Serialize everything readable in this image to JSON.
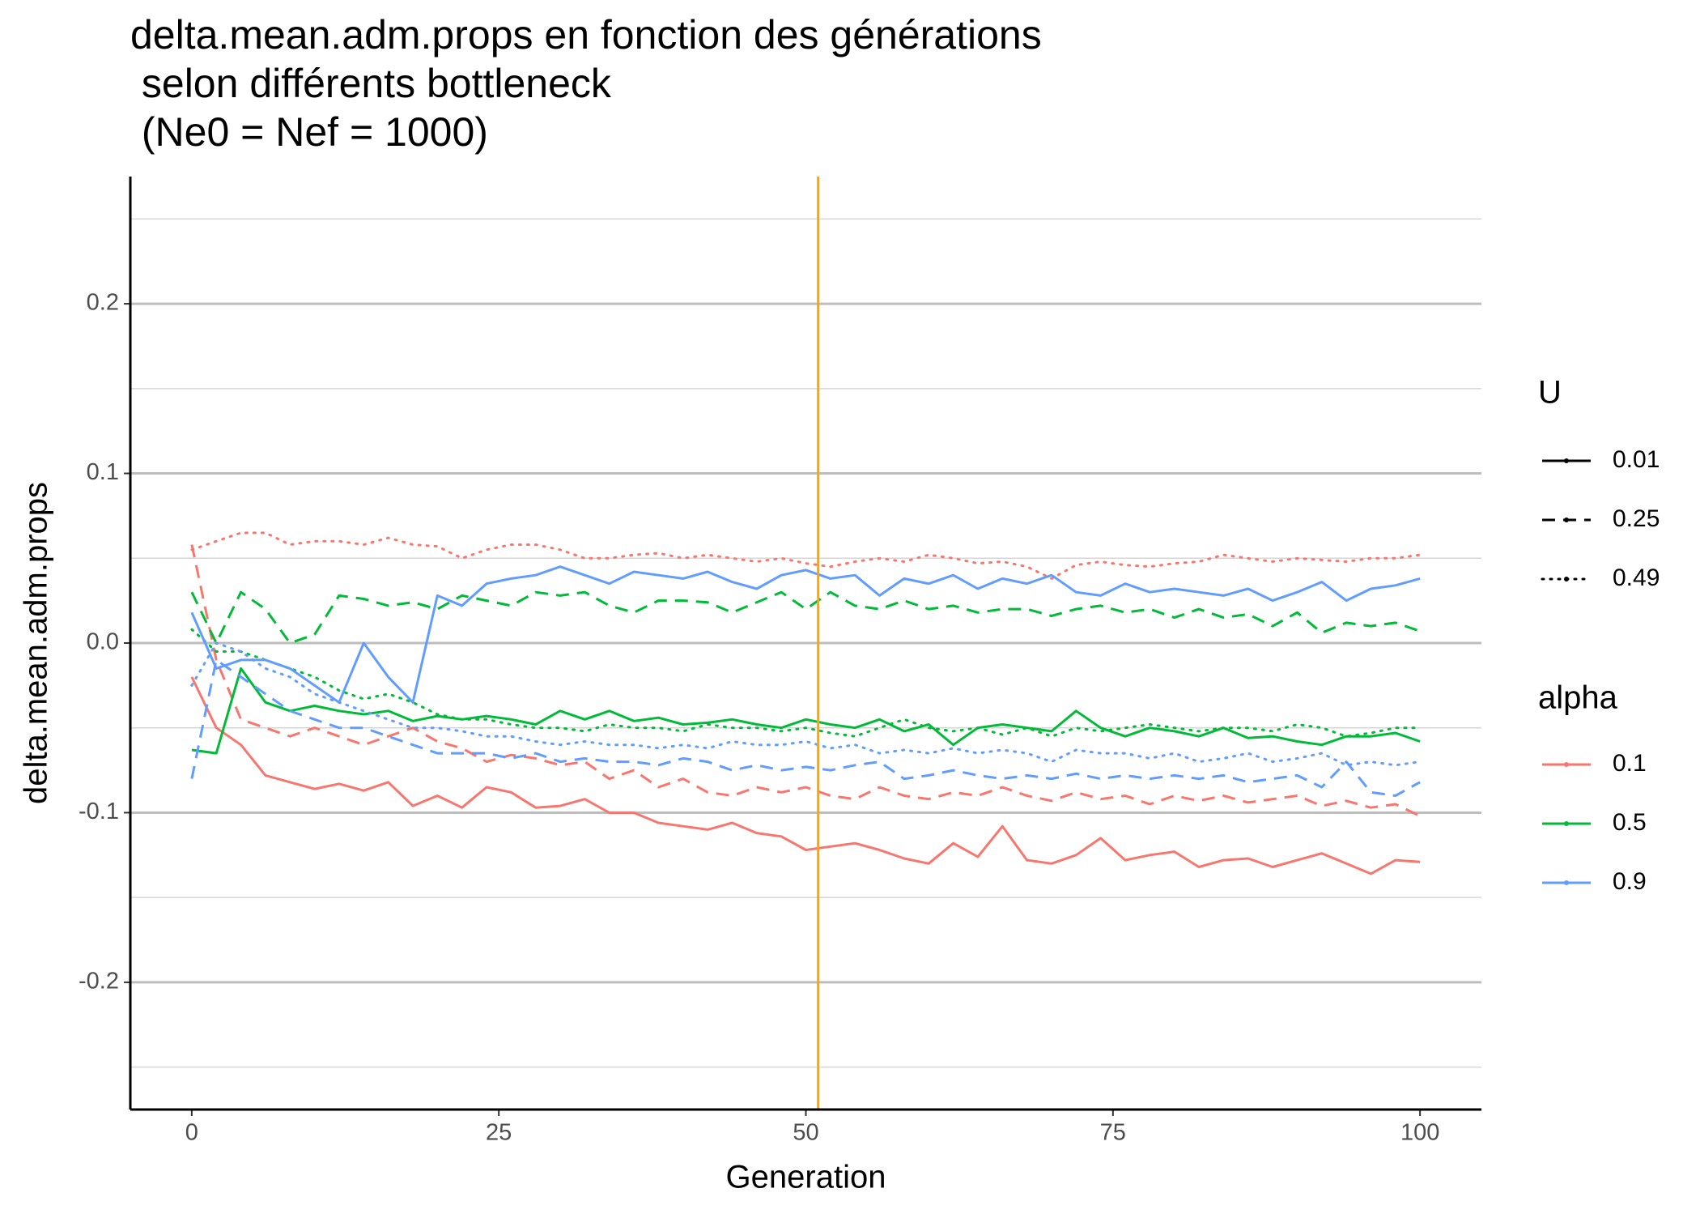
{
  "chart_data": {
    "type": "line",
    "title": [
      "delta.mean.adm.props en fonction des générations",
      " selon différents bottleneck",
      " (Ne0 = Nef = 1000)"
    ],
    "x_label": "Generation",
    "y_label": "delta.mean.adm.props",
    "xlim": [
      -5,
      105
    ],
    "ylim": [
      -0.275,
      0.275
    ],
    "xticks": [
      0,
      25,
      50,
      75,
      100
    ],
    "yticks": [
      -0.2,
      -0.1,
      {
        "value": 0,
        "label": "0.0"
      },
      0.1,
      0.2
    ],
    "minor_grid": [
      -0.25,
      -0.15,
      -0.05,
      0.05,
      0.15,
      0.25
    ],
    "grid": true,
    "vline": 51,
    "vline_color": "#FFA500",
    "legends": [
      {
        "title": "U",
        "labels": [
          "0.01",
          "0.25",
          "0.49"
        ],
        "linetypes": [
          "solid",
          "dashed",
          "dotted"
        ]
      },
      {
        "title": "alpha",
        "labels": [
          "0.1",
          "0.5",
          "0.9"
        ],
        "colors": [
          "#F8766D",
          "#00BA38",
          "#619CFF"
        ]
      }
    ],
    "x": [
      0,
      2,
      4,
      6,
      8,
      10,
      12,
      14,
      16,
      18,
      20,
      22,
      24,
      26,
      28,
      30,
      32,
      34,
      36,
      38,
      40,
      42,
      44,
      46,
      48,
      50,
      52,
      54,
      56,
      58,
      60,
      62,
      64,
      66,
      68,
      70,
      72,
      74,
      76,
      78,
      80,
      82,
      84,
      86,
      88,
      90,
      92,
      94,
      96,
      98,
      100
    ],
    "series": [
      {
        "color": "#F8766D",
        "linetype": "solid",
        "values": [
          -0.02,
          -0.05,
          -0.06,
          -0.078,
          -0.082,
          -0.086,
          -0.083,
          -0.087,
          -0.082,
          -0.096,
          -0.09,
          -0.097,
          -0.085,
          -0.088,
          -0.097,
          -0.096,
          -0.092,
          -0.1,
          -0.1,
          -0.106,
          -0.108,
          -0.11,
          -0.106,
          -0.112,
          -0.114,
          -0.122,
          -0.12,
          -0.118,
          -0.122,
          -0.127,
          -0.13,
          -0.118,
          -0.126,
          -0.108,
          -0.128,
          -0.13,
          -0.125,
          -0.115,
          -0.128,
          -0.125,
          -0.123,
          -0.132,
          -0.128,
          -0.127,
          -0.132,
          -0.128,
          -0.124,
          -0.13,
          -0.136,
          -0.128,
          -0.129
        ]
      },
      {
        "color": "#F8766D",
        "linetype": "dashed",
        "values": [
          0.058,
          -0.01,
          -0.045,
          -0.05,
          -0.055,
          -0.05,
          -0.055,
          -0.06,
          -0.055,
          -0.05,
          -0.058,
          -0.062,
          -0.07,
          -0.066,
          -0.068,
          -0.072,
          -0.07,
          -0.08,
          -0.075,
          -0.085,
          -0.08,
          -0.088,
          -0.09,
          -0.085,
          -0.088,
          -0.085,
          -0.09,
          -0.092,
          -0.085,
          -0.09,
          -0.092,
          -0.088,
          -0.09,
          -0.085,
          -0.09,
          -0.093,
          -0.088,
          -0.092,
          -0.09,
          -0.095,
          -0.09,
          -0.093,
          -0.09,
          -0.094,
          -0.092,
          -0.09,
          -0.096,
          -0.093,
          -0.097,
          -0.095,
          -0.102
        ]
      },
      {
        "color": "#F8766D",
        "linetype": "dotted",
        "values": [
          0.055,
          0.06,
          0.065,
          0.065,
          0.058,
          0.06,
          0.06,
          0.058,
          0.062,
          0.058,
          0.057,
          0.05,
          0.055,
          0.058,
          0.058,
          0.055,
          0.05,
          0.05,
          0.052,
          0.053,
          0.05,
          0.052,
          0.05,
          0.048,
          0.05,
          0.047,
          0.045,
          0.048,
          0.05,
          0.048,
          0.052,
          0.05,
          0.047,
          0.048,
          0.045,
          0.038,
          0.046,
          0.048,
          0.046,
          0.045,
          0.047,
          0.048,
          0.052,
          0.05,
          0.048,
          0.05,
          0.049,
          0.048,
          0.05,
          0.05,
          0.052
        ]
      },
      {
        "color": "#00BA38",
        "linetype": "solid",
        "values": [
          -0.063,
          -0.065,
          -0.015,
          -0.035,
          -0.04,
          -0.037,
          -0.04,
          -0.042,
          -0.04,
          -0.046,
          -0.043,
          -0.045,
          -0.043,
          -0.045,
          -0.048,
          -0.04,
          -0.045,
          -0.04,
          -0.046,
          -0.044,
          -0.048,
          -0.047,
          -0.045,
          -0.048,
          -0.05,
          -0.045,
          -0.048,
          -0.05,
          -0.045,
          -0.052,
          -0.048,
          -0.06,
          -0.05,
          -0.048,
          -0.05,
          -0.052,
          -0.04,
          -0.05,
          -0.055,
          -0.05,
          -0.052,
          -0.055,
          -0.05,
          -0.056,
          -0.055,
          -0.058,
          -0.06,
          -0.055,
          -0.055,
          -0.053,
          -0.058
        ]
      },
      {
        "color": "#00BA38",
        "linetype": "dashed",
        "values": [
          0.03,
          0.0,
          0.03,
          0.02,
          0.0,
          0.005,
          0.028,
          0.026,
          0.022,
          0.024,
          0.02,
          0.028,
          0.025,
          0.022,
          0.03,
          0.028,
          0.03,
          0.022,
          0.018,
          0.025,
          0.025,
          0.024,
          0.018,
          0.024,
          0.03,
          0.02,
          0.03,
          0.022,
          0.02,
          0.025,
          0.02,
          0.022,
          0.018,
          0.02,
          0.02,
          0.016,
          0.02,
          0.022,
          0.018,
          0.02,
          0.015,
          0.02,
          0.015,
          0.017,
          0.01,
          0.018,
          0.006,
          0.012,
          0.01,
          0.012,
          0.007
        ]
      },
      {
        "color": "#00BA38",
        "linetype": "dotted",
        "values": [
          0.008,
          -0.005,
          -0.005,
          -0.01,
          -0.015,
          -0.02,
          -0.028,
          -0.033,
          -0.03,
          -0.035,
          -0.042,
          -0.045,
          -0.045,
          -0.048,
          -0.05,
          -0.05,
          -0.052,
          -0.048,
          -0.05,
          -0.05,
          -0.052,
          -0.048,
          -0.05,
          -0.05,
          -0.052,
          -0.05,
          -0.053,
          -0.055,
          -0.05,
          -0.045,
          -0.05,
          -0.052,
          -0.05,
          -0.054,
          -0.05,
          -0.055,
          -0.05,
          -0.052,
          -0.05,
          -0.048,
          -0.05,
          -0.052,
          -0.05,
          -0.05,
          -0.052,
          -0.048,
          -0.05,
          -0.055,
          -0.053,
          -0.05,
          -0.05
        ]
      },
      {
        "color": "#619CFF",
        "linetype": "solid",
        "values": [
          0.018,
          -0.015,
          -0.01,
          -0.01,
          -0.015,
          -0.025,
          -0.035,
          0.0,
          -0.02,
          -0.035,
          0.028,
          0.022,
          0.035,
          0.038,
          0.04,
          0.045,
          0.04,
          0.035,
          0.042,
          0.04,
          0.038,
          0.042,
          0.036,
          0.032,
          0.04,
          0.043,
          0.038,
          0.04,
          0.028,
          0.038,
          0.035,
          0.04,
          0.032,
          0.038,
          0.035,
          0.04,
          0.03,
          0.028,
          0.035,
          0.03,
          0.032,
          0.03,
          0.028,
          0.032,
          0.025,
          0.03,
          0.036,
          0.025,
          0.032,
          0.034,
          0.038
        ]
      },
      {
        "color": "#619CFF",
        "linetype": "dashed",
        "values": [
          -0.08,
          -0.01,
          -0.02,
          -0.03,
          -0.04,
          -0.045,
          -0.05,
          -0.05,
          -0.055,
          -0.06,
          -0.065,
          -0.065,
          -0.065,
          -0.068,
          -0.065,
          -0.07,
          -0.068,
          -0.07,
          -0.07,
          -0.072,
          -0.068,
          -0.07,
          -0.075,
          -0.072,
          -0.075,
          -0.073,
          -0.075,
          -0.072,
          -0.07,
          -0.08,
          -0.078,
          -0.075,
          -0.078,
          -0.08,
          -0.078,
          -0.08,
          -0.077,
          -0.08,
          -0.078,
          -0.08,
          -0.078,
          -0.08,
          -0.078,
          -0.082,
          -0.08,
          -0.078,
          -0.085,
          -0.07,
          -0.088,
          -0.09,
          -0.082
        ]
      },
      {
        "color": "#619CFF",
        "linetype": "dotted",
        "values": [
          -0.025,
          0.0,
          -0.005,
          -0.015,
          -0.02,
          -0.03,
          -0.035,
          -0.04,
          -0.045,
          -0.05,
          -0.05,
          -0.052,
          -0.055,
          -0.055,
          -0.058,
          -0.06,
          -0.058,
          -0.06,
          -0.06,
          -0.062,
          -0.06,
          -0.062,
          -0.058,
          -0.06,
          -0.06,
          -0.058,
          -0.062,
          -0.06,
          -0.065,
          -0.063,
          -0.065,
          -0.062,
          -0.065,
          -0.063,
          -0.065,
          -0.07,
          -0.063,
          -0.065,
          -0.065,
          -0.068,
          -0.065,
          -0.07,
          -0.068,
          -0.065,
          -0.07,
          -0.068,
          -0.065,
          -0.072,
          -0.07,
          -0.072,
          -0.07
        ]
      }
    ]
  }
}
